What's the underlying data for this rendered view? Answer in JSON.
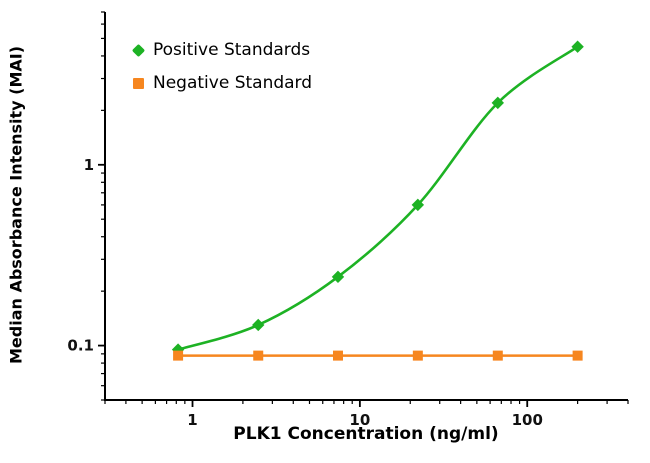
{
  "figure": {
    "background": "#ffffff"
  },
  "chart_data": {
    "type": "line",
    "title": "",
    "xlabel": "PLK1 Concentration (ng/ml)",
    "ylabel": "Median Absorbance Intensity (MAI)",
    "xscale": "log",
    "yscale": "log",
    "xlim": [
      0.3,
      400
    ],
    "ylim": [
      0.05,
      7
    ],
    "x_major_ticks": [
      1,
      10,
      100
    ],
    "x_tick_labels": [
      "1",
      "10",
      "100"
    ],
    "y_major_ticks": [
      0.1,
      1
    ],
    "y_tick_labels": [
      "0.1",
      "1"
    ],
    "grid": false,
    "legend_position": "top-left",
    "x": [
      0.82,
      2.47,
      7.4,
      22.2,
      66.7,
      200
    ],
    "series": [
      {
        "name": "Positive Standards",
        "color": "#1DB224",
        "marker": "diamond",
        "curve": "smooth",
        "values": [
          0.095,
          0.13,
          0.24,
          0.6,
          2.2,
          4.5
        ]
      },
      {
        "name": "Negative Standard",
        "color": "#F6861F",
        "marker": "square",
        "curve": "straight",
        "values": [
          0.088,
          0.088,
          0.088,
          0.088,
          0.088,
          0.088
        ]
      }
    ]
  }
}
